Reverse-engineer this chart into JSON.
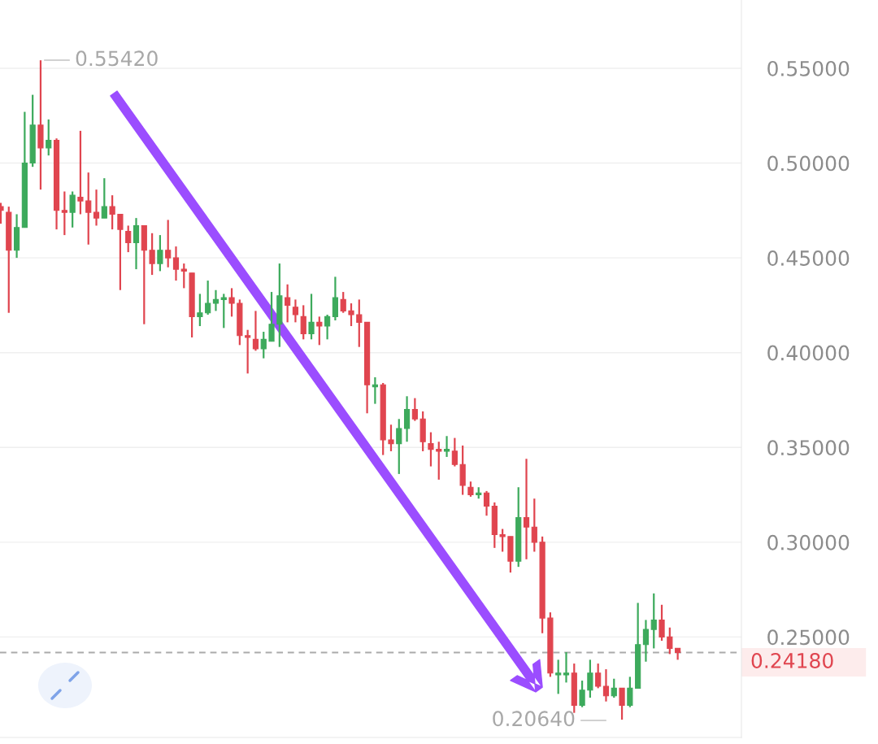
{
  "chart_data": {
    "type": "candlestick",
    "categories": [
      null,
      null,
      null,
      null,
      null,
      null,
      null,
      null,
      null,
      null,
      null,
      null,
      null,
      null,
      null,
      null,
      null,
      null,
      null,
      null,
      null,
      null,
      null,
      null,
      null,
      null,
      null,
      null,
      null,
      null,
      null,
      null,
      null,
      null,
      null,
      null,
      null,
      null,
      null,
      null,
      null,
      null,
      null,
      null,
      null,
      null,
      null,
      null,
      null,
      null,
      null,
      null,
      null,
      null,
      null,
      null,
      null,
      null,
      null,
      null,
      null,
      null,
      null,
      null,
      null,
      null,
      null,
      null,
      null,
      null,
      null,
      null,
      null,
      null,
      null,
      null,
      null,
      null,
      null,
      null,
      null,
      null,
      null,
      null,
      null,
      null
    ],
    "ohlc": [
      [
        0.477,
        0.479,
        0.468,
        0.475
      ],
      [
        0.474,
        0.477,
        0.421,
        0.454
      ],
      [
        0.454,
        0.473,
        0.45,
        0.466
      ],
      [
        0.466,
        0.527,
        0.466,
        0.5
      ],
      [
        0.5,
        0.536,
        0.498,
        0.52
      ],
      [
        0.52,
        0.5542,
        0.486,
        0.508
      ],
      [
        0.508,
        0.523,
        0.504,
        0.512
      ],
      [
        0.512,
        0.513,
        0.465,
        0.475
      ],
      [
        0.475,
        0.485,
        0.462,
        0.474
      ],
      [
        0.474,
        0.485,
        0.466,
        0.483
      ],
      [
        0.482,
        0.517,
        0.473,
        0.48
      ],
      [
        0.48,
        0.495,
        0.457,
        0.474
      ],
      [
        0.474,
        0.486,
        0.467,
        0.471
      ],
      [
        0.471,
        0.492,
        0.471,
        0.477
      ],
      [
        0.477,
        0.483,
        0.465,
        0.473
      ],
      [
        0.473,
        0.473,
        0.433,
        0.465
      ],
      [
        0.464,
        0.467,
        0.453,
        0.458
      ],
      [
        0.458,
        0.471,
        0.444,
        0.467
      ],
      [
        0.467,
        0.467,
        0.415,
        0.454
      ],
      [
        0.454,
        0.463,
        0.441,
        0.447
      ],
      [
        0.447,
        0.462,
        0.443,
        0.454
      ],
      [
        0.454,
        0.47,
        0.445,
        0.45
      ],
      [
        0.45,
        0.456,
        0.438,
        0.444
      ],
      [
        0.444,
        0.447,
        0.434,
        0.443
      ],
      [
        0.442,
        0.442,
        0.408,
        0.419
      ],
      [
        0.419,
        0.431,
        0.414,
        0.421
      ],
      [
        0.421,
        0.438,
        0.42,
        0.426
      ],
      [
        0.426,
        0.433,
        0.422,
        0.428
      ],
      [
        0.428,
        0.431,
        0.413,
        0.429
      ],
      [
        0.429,
        0.434,
        0.419,
        0.426
      ],
      [
        0.426,
        0.428,
        0.404,
        0.409
      ],
      [
        0.409,
        0.412,
        0.389,
        0.408
      ],
      [
        0.407,
        0.422,
        0.401,
        0.402
      ],
      [
        0.402,
        0.411,
        0.397,
        0.407
      ],
      [
        0.406,
        0.432,
        0.406,
        0.415
      ],
      [
        0.415,
        0.447,
        0.403,
        0.43
      ],
      [
        0.429,
        0.436,
        0.416,
        0.425
      ],
      [
        0.424,
        0.428,
        0.416,
        0.42
      ],
      [
        0.419,
        0.425,
        0.407,
        0.41
      ],
      [
        0.41,
        0.431,
        0.407,
        0.416
      ],
      [
        0.416,
        0.419,
        0.404,
        0.414
      ],
      [
        0.414,
        0.42,
        0.407,
        0.419
      ],
      [
        0.419,
        0.44,
        0.417,
        0.429
      ],
      [
        0.428,
        0.432,
        0.421,
        0.422
      ],
      [
        0.422,
        0.426,
        0.414,
        0.42
      ],
      [
        0.42,
        0.428,
        0.403,
        0.416
      ],
      [
        0.416,
        0.416,
        0.368,
        0.383
      ],
      [
        0.382,
        0.387,
        0.373,
        0.383
      ],
      [
        0.383,
        0.384,
        0.346,
        0.354
      ],
      [
        0.354,
        0.362,
        0.348,
        0.352
      ],
      [
        0.352,
        0.365,
        0.336,
        0.36
      ],
      [
        0.36,
        0.377,
        0.353,
        0.37
      ],
      [
        0.37,
        0.376,
        0.364,
        0.365
      ],
      [
        0.365,
        0.369,
        0.348,
        0.353
      ],
      [
        0.352,
        0.358,
        0.34,
        0.349
      ],
      [
        0.349,
        0.353,
        0.333,
        0.348
      ],
      [
        0.348,
        0.356,
        0.345,
        0.349
      ],
      [
        0.348,
        0.355,
        0.34,
        0.341
      ],
      [
        0.341,
        0.351,
        0.325,
        0.33
      ],
      [
        0.329,
        0.332,
        0.324,
        0.325
      ],
      [
        0.325,
        0.329,
        0.323,
        0.326
      ],
      [
        0.326,
        0.327,
        0.314,
        0.319
      ],
      [
        0.319,
        0.321,
        0.297,
        0.304
      ],
      [
        0.304,
        0.307,
        0.295,
        0.303
      ],
      [
        0.303,
        0.303,
        0.284,
        0.29
      ],
      [
        0.29,
        0.329,
        0.287,
        0.313
      ],
      [
        0.313,
        0.344,
        0.291,
        0.308
      ],
      [
        0.308,
        0.323,
        0.295,
        0.3
      ],
      [
        0.3,
        0.303,
        0.252,
        0.26
      ],
      [
        0.26,
        0.263,
        0.229,
        0.231
      ],
      [
        0.23,
        0.238,
        0.22,
        0.231
      ],
      [
        0.23,
        0.242,
        0.226,
        0.231
      ],
      [
        0.231,
        0.236,
        0.21,
        0.214
      ],
      [
        0.214,
        0.227,
        0.213,
        0.222
      ],
      [
        0.222,
        0.238,
        0.218,
        0.231
      ],
      [
        0.231,
        0.236,
        0.223,
        0.224
      ],
      [
        0.224,
        0.233,
        0.216,
        0.219
      ],
      [
        0.219,
        0.228,
        0.218,
        0.223
      ],
      [
        0.223,
        0.223,
        0.2064,
        0.214
      ],
      [
        0.214,
        0.229,
        0.213,
        0.223
      ],
      [
        0.223,
        0.268,
        0.223,
        0.246
      ],
      [
        0.246,
        0.259,
        0.237,
        0.254
      ],
      [
        0.254,
        0.273,
        0.244,
        0.259
      ],
      [
        0.259,
        0.267,
        0.248,
        0.25
      ],
      [
        0.25,
        0.255,
        0.241,
        0.244
      ],
      [
        0.244,
        0.244,
        0.238,
        0.2418
      ]
    ],
    "colors": [
      "#e0454f",
      "#e0454f",
      "#3daa5c",
      "#3daa5c",
      "#3daa5c",
      "#e0454f",
      "#3daa5c",
      "#e0454f",
      "#e0454f",
      "#3daa5c",
      "#e0454f",
      "#e0454f",
      "#e0454f",
      "#3daa5c",
      "#e0454f",
      "#e0454f",
      "#e0454f",
      "#3daa5c",
      "#e0454f",
      "#e0454f",
      "#3daa5c",
      "#e0454f",
      "#e0454f",
      "#e0454f",
      "#e0454f",
      "#3daa5c",
      "#3daa5c",
      "#3daa5c",
      "#3daa5c",
      "#e0454f",
      "#e0454f",
      "#e0454f",
      "#e0454f",
      "#3daa5c",
      "#3daa5c",
      "#3daa5c",
      "#e0454f",
      "#e0454f",
      "#e0454f",
      "#3daa5c",
      "#e0454f",
      "#3daa5c",
      "#3daa5c",
      "#e0454f",
      "#e0454f",
      "#e0454f",
      "#e0454f",
      "#3daa5c",
      "#e0454f",
      "#e0454f",
      "#3daa5c",
      "#3daa5c",
      "#e0454f",
      "#e0454f",
      "#e0454f",
      "#e0454f",
      "#3daa5c",
      "#e0454f",
      "#e0454f",
      "#e0454f",
      "#3daa5c",
      "#e0454f",
      "#e0454f",
      "#e0454f",
      "#e0454f",
      "#3daa5c",
      "#e0454f",
      "#e0454f",
      "#e0454f",
      "#e0454f",
      "#3daa5c",
      "#3daa5c",
      "#e0454f",
      "#3daa5c",
      "#3daa5c",
      "#e0454f",
      "#e0454f",
      "#3daa5c",
      "#e0454f",
      "#3daa5c",
      "#3daa5c",
      "#3daa5c",
      "#3daa5c",
      "#e0454f",
      "#e0454f",
      "#e0454f"
    ],
    "ylim": [
      0.197,
      0.586
    ],
    "yticks": [
      {
        "value": 0.25,
        "label": "0.25000"
      },
      {
        "value": 0.3,
        "label": "0.30000"
      },
      {
        "value": 0.35,
        "label": "0.35000"
      },
      {
        "value": 0.4,
        "label": "0.40000"
      },
      {
        "value": 0.45,
        "label": "0.45000"
      },
      {
        "value": 0.5,
        "label": "0.50000"
      },
      {
        "value": 0.55,
        "label": "0.55000"
      }
    ],
    "grid": "y",
    "ref_lines": [
      {
        "axis": "y",
        "value": 0.2418,
        "label": "0.24180",
        "color": "#aaaaaa",
        "line_style": "dashed"
      }
    ],
    "annotations": [
      "0.55420",
      "0.20640"
    ]
  }
}
